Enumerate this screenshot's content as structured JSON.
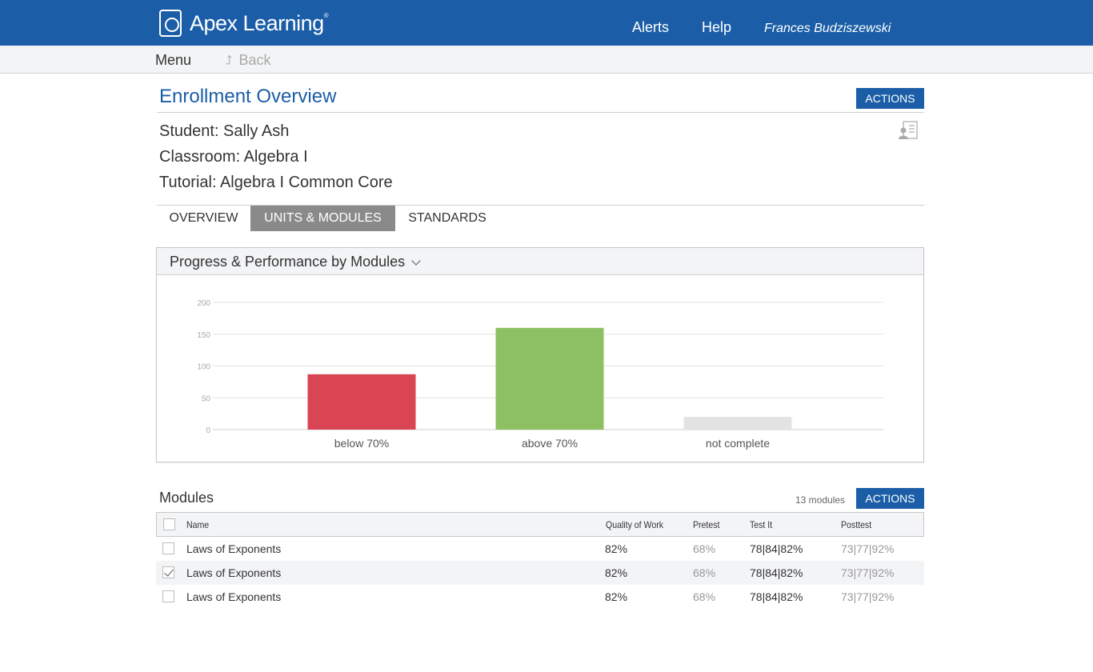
{
  "header": {
    "brand": "Apex Learning",
    "brand_mark": "®",
    "nav": {
      "alerts": "Alerts",
      "help": "Help",
      "user": "Frances Budziszewski"
    }
  },
  "subnav": {
    "menu": "Menu",
    "back": "Back"
  },
  "page": {
    "title": "Enrollment Overview",
    "actions_label": "ACTIONS",
    "student": "Student: Sally Ash",
    "classroom": "Classroom: Algebra I",
    "tutorial": "Tutorial: Algebra I Common Core"
  },
  "tabs": [
    {
      "label": "OVERVIEW",
      "active": false
    },
    {
      "label": "UNITS & MODULES",
      "active": true
    },
    {
      "label": "STANDARDS",
      "active": false
    }
  ],
  "panel": {
    "title": "Progress & Performance by Modules"
  },
  "chart_data": {
    "type": "bar",
    "categories": [
      "below 70%",
      "above 70%",
      "not complete"
    ],
    "values": [
      87,
      160,
      20
    ],
    "colors": [
      "#d94552",
      "#8cc063",
      "#e3e3e3"
    ],
    "ylim": [
      0,
      200
    ],
    "yticks": [
      0,
      50,
      100,
      150,
      200
    ],
    "grid": true,
    "title": "",
    "xlabel": "",
    "ylabel": ""
  },
  "modules": {
    "title": "Modules",
    "count": "13 modules",
    "actions_label": "ACTIONS",
    "columns": [
      "Name",
      "Quality of Work",
      "Pretest",
      "Test It",
      "Posttest"
    ],
    "rows": [
      {
        "name": "Laws of Exponents",
        "quality": "82%",
        "pretest": "68%",
        "testit": "78|84|82%",
        "posttest": "73|77|92%",
        "checked": false
      },
      {
        "name": "Laws of Exponents",
        "quality": "82%",
        "pretest": "68%",
        "testit": "78|84|82%",
        "posttest": "73|77|92%",
        "checked": true
      },
      {
        "name": "Laws of Exponents",
        "quality": "82%",
        "pretest": "68%",
        "testit": "78|84|82%",
        "posttest": "73|77|92%",
        "checked": false
      }
    ]
  }
}
